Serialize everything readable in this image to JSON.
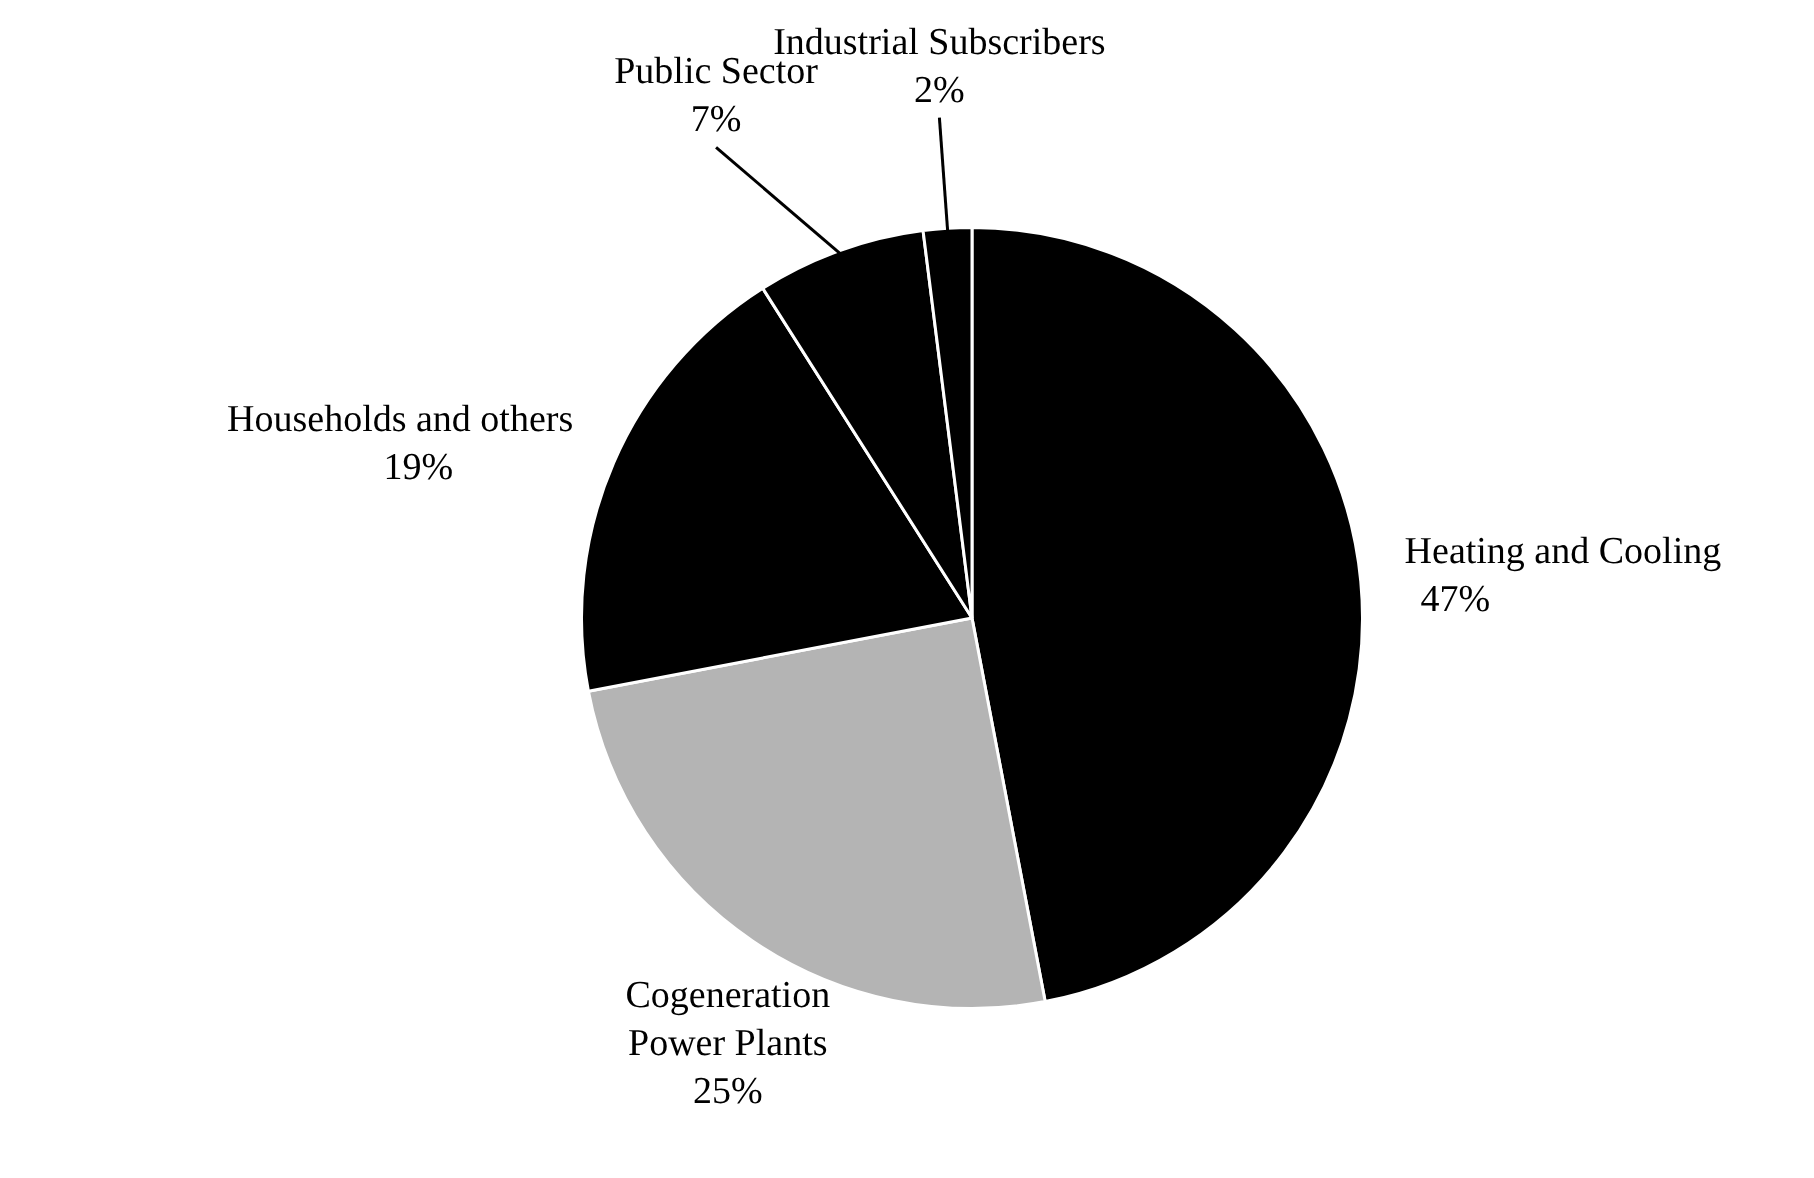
{
  "chart_data": {
    "type": "pie",
    "categories": [
      "Heating and Cooling",
      "Cogeneration Power Plants",
      "Households and others",
      "Public Sector",
      "Industrial Subscribers"
    ],
    "values": [
      47,
      25,
      19,
      7,
      2
    ],
    "value_labels": [
      "47%",
      "25%",
      "19%",
      "7%",
      "2%"
    ],
    "colors": [
      "#000000",
      "#b4b4b4",
      "#000000",
      "#000000",
      "#000000"
    ],
    "legend": false
  }
}
